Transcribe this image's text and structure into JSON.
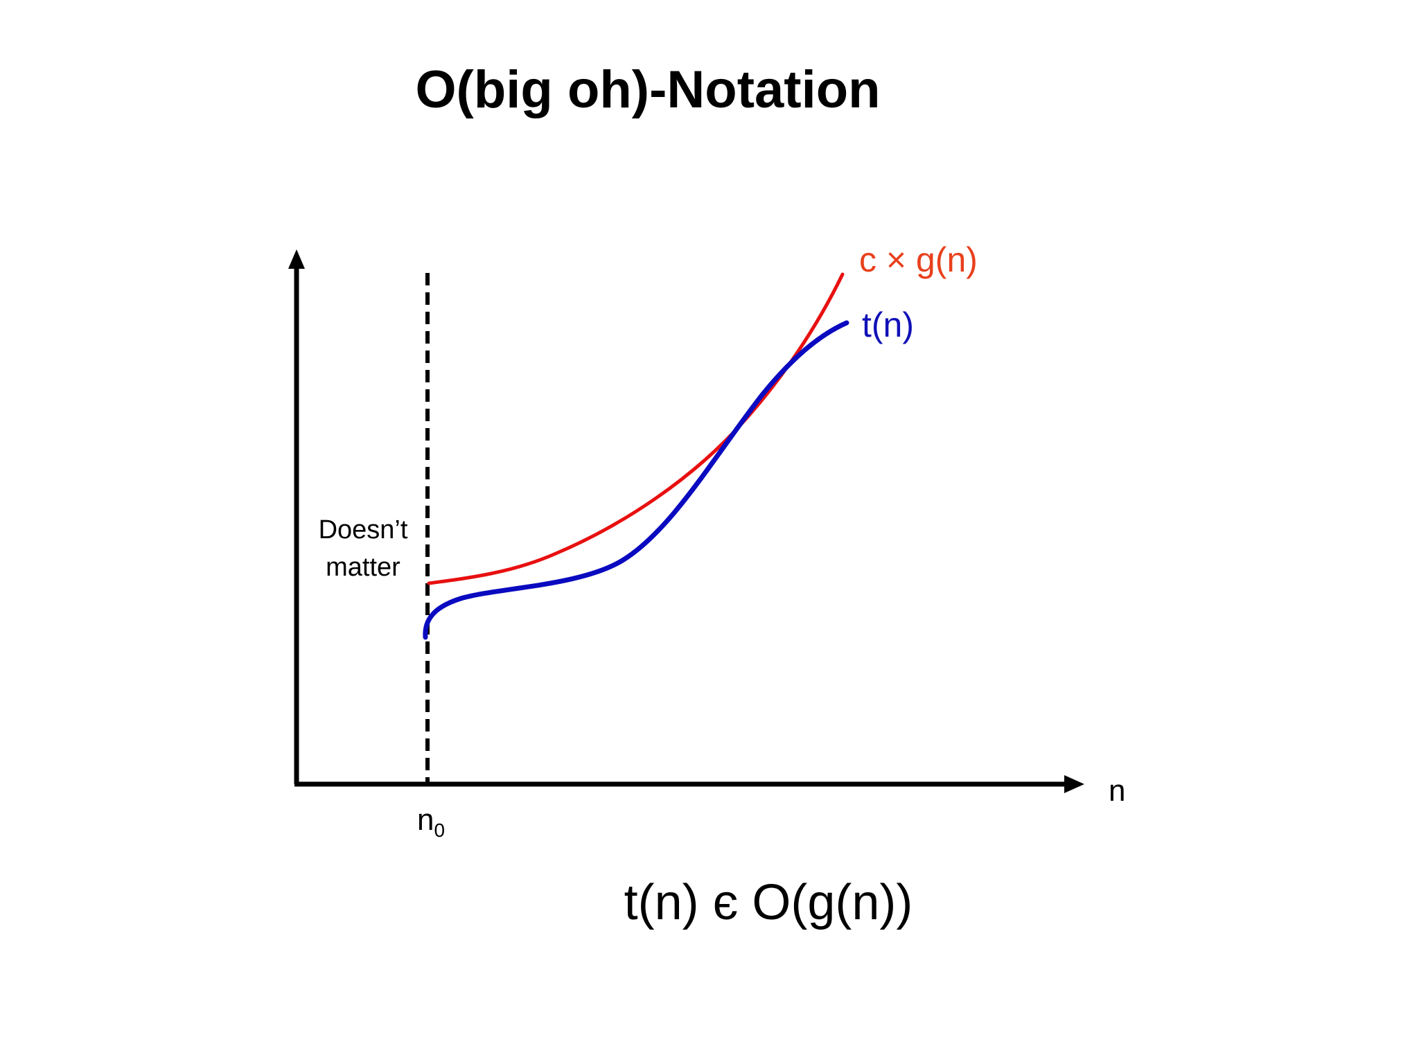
{
  "title": "O(big oh)-Notation",
  "annotation": {
    "line1": "Doesn’t",
    "line2": "matter"
  },
  "curves": {
    "upper": {
      "label": "c × g(n)",
      "color": "#e81010",
      "label_color": "#e8401c"
    },
    "lower": {
      "label": "t(n)",
      "color": "#0a0ac0",
      "label_color": "#1010b8"
    }
  },
  "axes": {
    "x_label": "n",
    "threshold_label": "n",
    "threshold_subscript": "0",
    "color": "#000000"
  },
  "formula": "t(n) є O(g(n))"
}
